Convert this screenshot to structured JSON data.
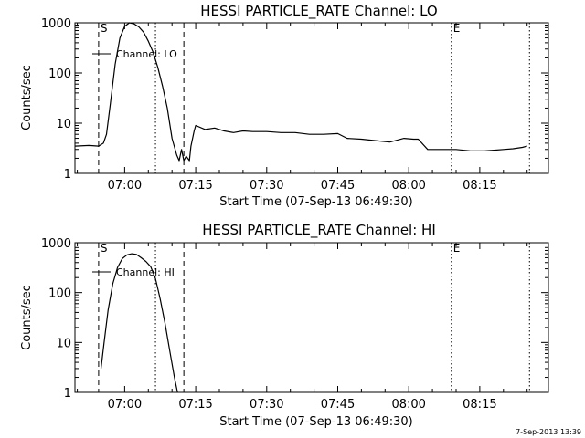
{
  "chart_data": [
    {
      "type": "line",
      "title": "HESSI PARTICLE_RATE Channel: LO",
      "xlabel": "Start Time (07-Sep-13 06:49:30)",
      "ylabel": "Counts/sec",
      "y_scale": "log",
      "ylim": [
        1,
        1000
      ],
      "xlim": [
        "06:49:30",
        "08:29:30"
      ],
      "x_ticks": [
        "07:00",
        "07:15",
        "07:30",
        "07:45",
        "08:00",
        "08:15"
      ],
      "y_ticks": [
        "1",
        "10",
        "100",
        "1000"
      ],
      "grid": false,
      "legend": "top-left",
      "series": [
        {
          "name": "Channel: LO",
          "x": [
            "06:49:30",
            "06:52:30",
            "06:54:30",
            "06:55:30",
            "06:56:10",
            "06:57:00",
            "06:58:00",
            "06:59:00",
            "07:00:00",
            "07:01:00",
            "07:02:00",
            "07:03:00",
            "07:04:00",
            "07:05:00",
            "07:06:00",
            "07:07:00",
            "07:08:00",
            "07:09:00",
            "07:10:00",
            "07:11:00",
            "07:11:30",
            "07:12:00",
            "07:12:30",
            "07:13:00",
            "07:13:40",
            "07:14:00",
            "07:14:40",
            "07:15:00",
            "07:17:00",
            "07:19:00",
            "07:21:00",
            "07:23:00",
            "07:25:00",
            "07:27:00",
            "07:30:00",
            "07:33:00",
            "07:36:00",
            "07:39:00",
            "07:42:00",
            "07:45:00",
            "07:47:00",
            "07:50:00",
            "07:53:00",
            "07:56:00",
            "07:59:00",
            "08:01:00",
            "08:02:00",
            "08:04:00",
            "08:07:00",
            "08:10:00",
            "08:13:00",
            "08:16:00",
            "08:18:00",
            "08:20:00",
            "08:22:00",
            "08:24:00",
            "08:25:00"
          ],
          "values": [
            3.5,
            3.6,
            3.5,
            4.0,
            6.0,
            25,
            150,
            500,
            850,
            1000,
            950,
            830,
            650,
            430,
            260,
            130,
            55,
            20,
            5,
            2.3,
            1.8,
            3.0,
            1.8,
            2.2,
            1.8,
            3.5,
            7.0,
            9.0,
            7.5,
            8.0,
            7.0,
            6.5,
            7.0,
            6.8,
            6.8,
            6.5,
            6.5,
            6.0,
            6.0,
            6.2,
            5.0,
            4.8,
            4.5,
            4.2,
            5.0,
            4.8,
            4.8,
            3.0,
            3.0,
            3.0,
            2.8,
            2.8,
            2.9,
            3.0,
            3.1,
            3.3,
            3.5
          ]
        }
      ],
      "annotations": [
        {
          "label": "S",
          "time": "06:54:30",
          "style": "dashed"
        },
        {
          "label": "",
          "time": "07:12:30",
          "style": "dashed"
        },
        {
          "label": "",
          "time": "07:06:30",
          "style": "dotted"
        },
        {
          "label": "E",
          "time": "08:09:00",
          "style": "dotted"
        },
        {
          "label": "",
          "time": "08:25:30",
          "style": "dotted"
        }
      ]
    },
    {
      "type": "line",
      "title": "HESSI PARTICLE_RATE Channel: HI",
      "xlabel": "Start Time (07-Sep-13 06:49:30)",
      "ylabel": "Counts/sec",
      "y_scale": "log",
      "ylim": [
        1,
        1000
      ],
      "xlim": [
        "06:49:30",
        "08:29:30"
      ],
      "x_ticks": [
        "07:00",
        "07:15",
        "07:30",
        "07:45",
        "08:00",
        "08:15"
      ],
      "y_ticks": [
        "1",
        "10",
        "100",
        "1000"
      ],
      "grid": false,
      "legend": "top-left",
      "series": [
        {
          "name": "Channel: HI",
          "x": [
            "06:55:00",
            "06:55:40",
            "06:56:30",
            "06:57:30",
            "06:58:30",
            "06:59:30",
            "07:00:30",
            "07:01:30",
            "07:02:30",
            "07:03:30",
            "07:04:30",
            "07:05:30",
            "07:06:30",
            "07:07:30",
            "07:08:30",
            "07:09:30",
            "07:10:30",
            "07:11:10"
          ],
          "values": [
            3.0,
            10,
            45,
            150,
            320,
            480,
            570,
            600,
            580,
            500,
            420,
            330,
            190,
            75,
            25,
            7,
            2,
            1
          ]
        }
      ],
      "annotations": [
        {
          "label": "S",
          "time": "06:54:30",
          "style": "dashed"
        },
        {
          "label": "",
          "time": "07:12:30",
          "style": "dashed"
        },
        {
          "label": "",
          "time": "07:06:30",
          "style": "dotted"
        },
        {
          "label": "E",
          "time": "08:09:00",
          "style": "dotted"
        },
        {
          "label": "",
          "time": "08:25:30",
          "style": "dotted"
        }
      ]
    }
  ],
  "footer": {
    "date_stamp": "7-Sep-2013 13:39"
  }
}
